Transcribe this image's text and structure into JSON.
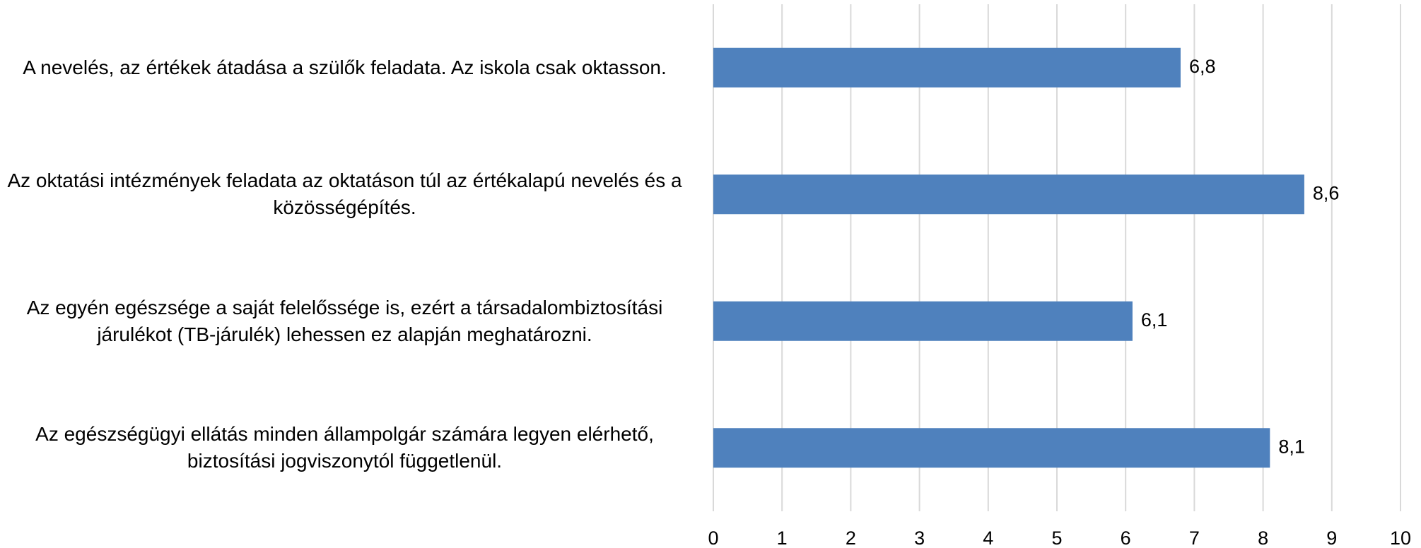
{
  "chart_data": {
    "type": "bar",
    "orientation": "horizontal",
    "categories": [
      "A nevelés, az értékek átadása a szülők feladata. Az iskola csak oktasson.",
      "Az oktatási intézmények feladata az oktatáson túl az értékalapú nevelés és a közösségépítés.",
      "Az egyén egészsége a saját felelőssége is, ezért a társadalombiztosítási járulékot (TB-járulék) lehessen ez alapján meghatározni.",
      "Az egészségügyi ellátás minden állampolgár számára legyen elérhető, biztosítási jogviszonytól függetlenül."
    ],
    "values": [
      6.8,
      8.6,
      6.1,
      8.1
    ],
    "value_labels": [
      "6,8",
      "8,6",
      "6,1",
      "8,1"
    ],
    "color": "#4f81bd",
    "xlim": [
      0,
      10
    ],
    "xticks": [
      0,
      1,
      2,
      3,
      4,
      5,
      6,
      7,
      8,
      9,
      10
    ],
    "grid": true
  }
}
